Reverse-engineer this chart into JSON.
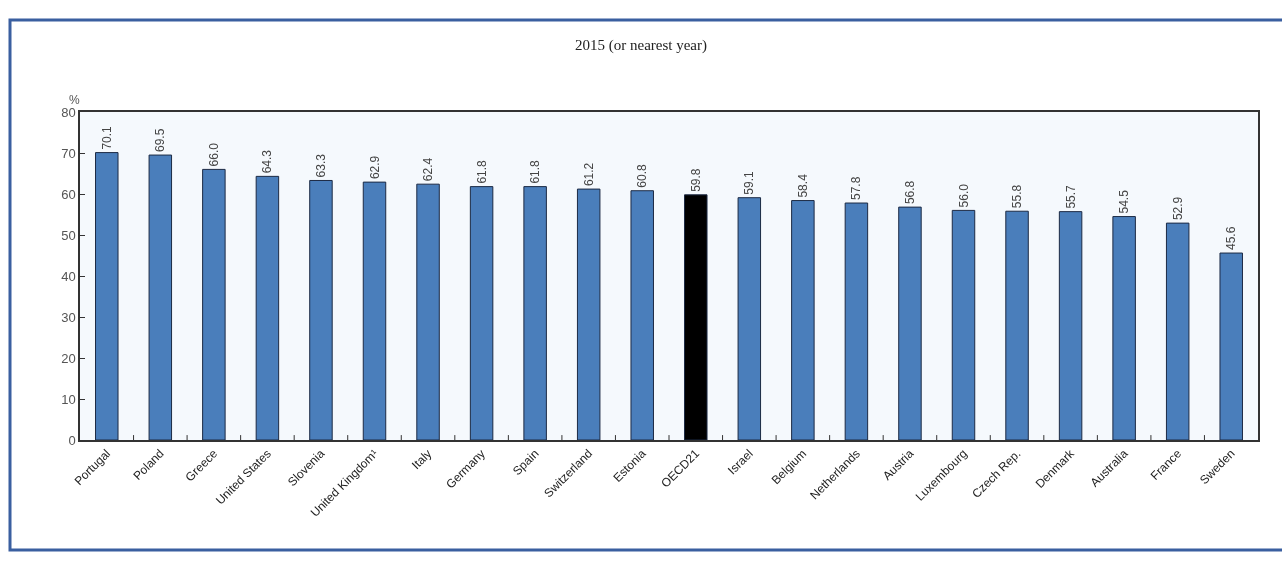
{
  "chart_data": {
    "type": "bar",
    "title": "2015 (or nearest year)",
    "ylabel": "%",
    "categories": [
      "Portugal",
      "Poland",
      "Greece",
      "United States",
      "Slovenia",
      "United Kingdom¹",
      "Italy",
      "Germany",
      "Spain",
      "Switzerland",
      "Estonia",
      "OECD21",
      "Israel",
      "Belgium",
      "Netherlands",
      "Austria",
      "Luxembourg",
      "Czech Rep.",
      "Denmark",
      "Australia",
      "France",
      "Sweden"
    ],
    "values": [
      70.1,
      69.5,
      66.0,
      64.3,
      63.3,
      62.9,
      62.4,
      61.8,
      61.8,
      61.2,
      60.8,
      59.8,
      59.1,
      58.4,
      57.8,
      56.8,
      56.0,
      55.8,
      55.7,
      54.5,
      52.9,
      45.6
    ],
    "value_labels": [
      "70.1",
      "69.5",
      "66.0",
      "64.3",
      "63.3",
      "62.9",
      "62.4",
      "61.8",
      "61.8",
      "61.2",
      "60.8",
      "59.8",
      "59.1",
      "58.4",
      "57.8",
      "56.8",
      "56.0",
      "55.8",
      "55.7",
      "54.5",
      "52.9",
      "45.6"
    ],
    "colors": [
      "#4a7ebb",
      "#4a7ebb",
      "#4a7ebb",
      "#4a7ebb",
      "#4a7ebb",
      "#4a7ebb",
      "#4a7ebb",
      "#4a7ebb",
      "#4a7ebb",
      "#4a7ebb",
      "#4a7ebb",
      "#000000",
      "#4a7ebb",
      "#4a7ebb",
      "#4a7ebb",
      "#4a7ebb",
      "#4a7ebb",
      "#4a7ebb",
      "#4a7ebb",
      "#4a7ebb",
      "#4a7ebb",
      "#4a7ebb"
    ],
    "ylim": [
      0,
      80
    ],
    "yticks": [
      0,
      10,
      20,
      30,
      40,
      50,
      60,
      70,
      80
    ]
  }
}
